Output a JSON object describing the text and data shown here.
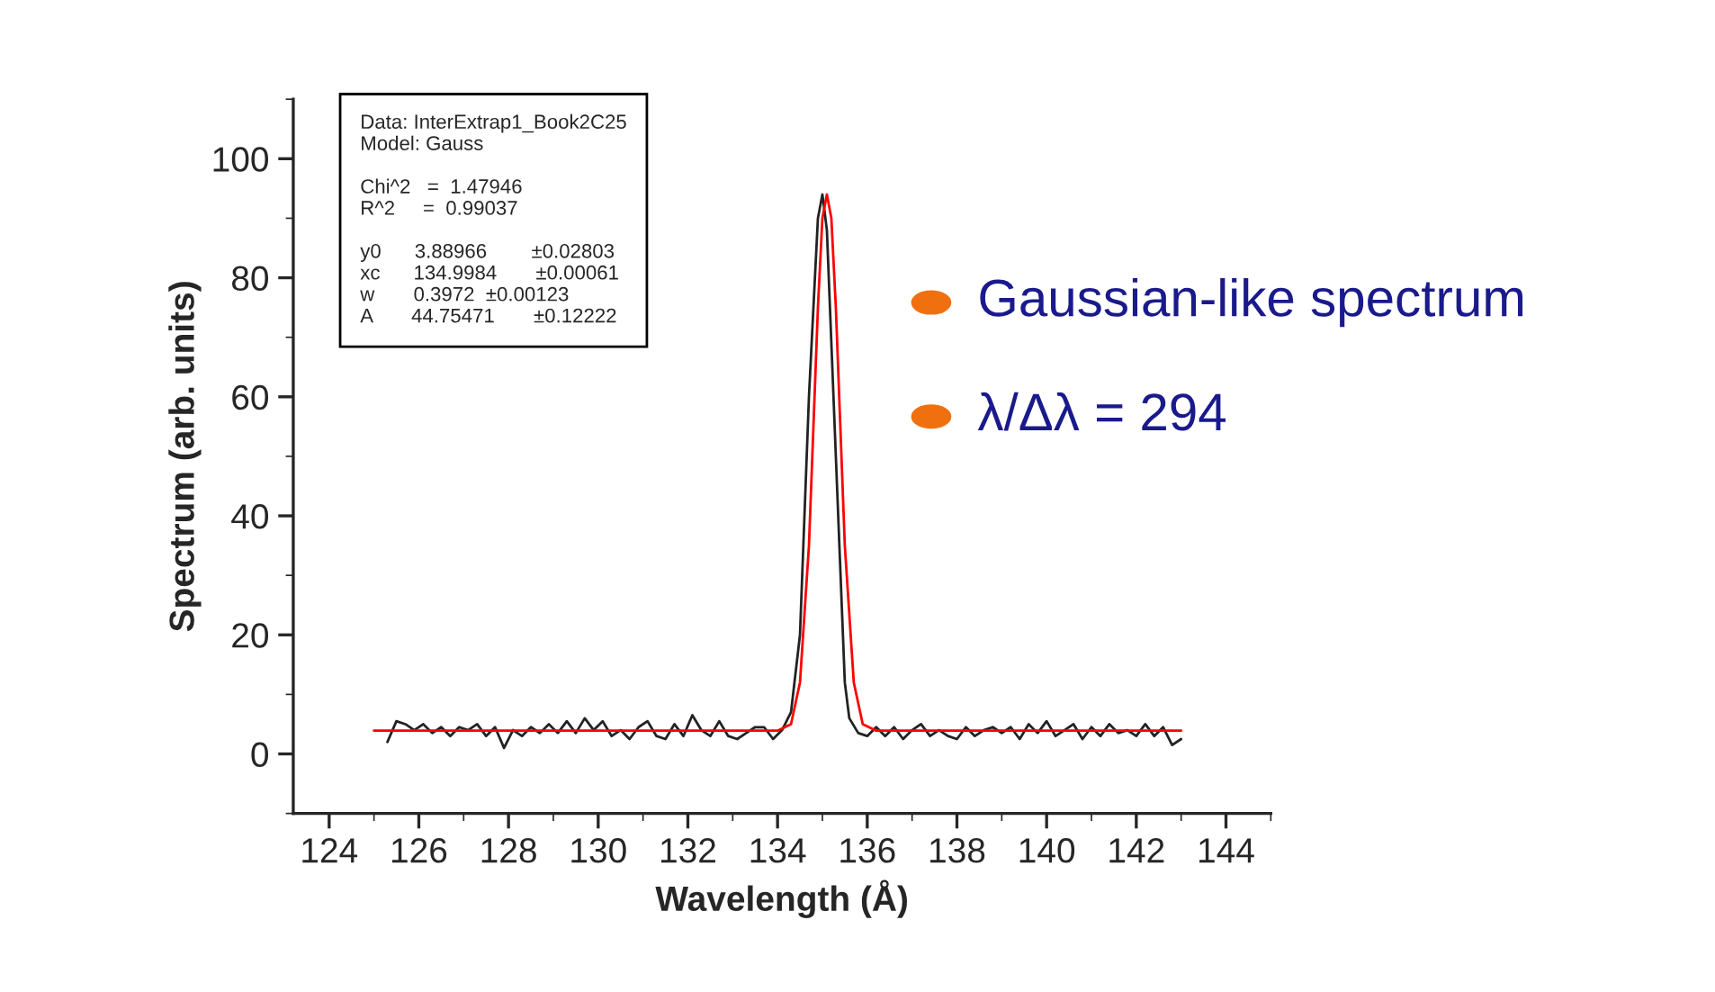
{
  "chart_data": {
    "type": "line",
    "xlabel": "Wavelength (Å)",
    "ylabel": "Spectrum (arb. units)",
    "xlim": [
      123.2,
      145
    ],
    "xticks": [
      124,
      126,
      128,
      130,
      132,
      134,
      136,
      138,
      140,
      142,
      144
    ],
    "ylim": [
      -10,
      110
    ],
    "yticks": [
      0,
      20,
      40,
      60,
      80,
      100
    ],
    "grid": false,
    "legend": false,
    "marker": "none",
    "line_style": "solid",
    "series": [
      {
        "color": "#222222",
        "x": [
          125.3,
          125.5,
          125.7,
          125.9,
          126.1,
          126.3,
          126.5,
          126.7,
          126.9,
          127.1,
          127.3,
          127.5,
          127.7,
          127.9,
          128.1,
          128.3,
          128.5,
          128.7,
          128.9,
          129.1,
          129.3,
          129.5,
          129.7,
          129.9,
          130.1,
          130.3,
          130.5,
          130.7,
          130.9,
          131.1,
          131.3,
          131.5,
          131.7,
          131.9,
          132.1,
          132.3,
          132.5,
          132.7,
          132.9,
          133.1,
          133.3,
          133.5,
          133.7,
          133.9,
          134.1,
          134.3,
          134.5,
          134.7,
          134.9,
          135.0,
          135.1,
          135.3,
          135.5,
          135.6,
          135.8,
          136.0,
          136.2,
          136.4,
          136.6,
          136.8,
          137.0,
          137.2,
          137.4,
          137.6,
          137.8,
          138.0,
          138.2,
          138.4,
          138.6,
          138.8,
          139.0,
          139.2,
          139.4,
          139.6,
          139.8,
          140.0,
          140.2,
          140.4,
          140.6,
          140.8,
          141.0,
          141.2,
          141.4,
          141.6,
          141.8,
          142.0,
          142.2,
          142.4,
          142.6,
          142.8,
          143.0
        ],
        "values": [
          2,
          5.5,
          5,
          4,
          5,
          3.5,
          4.5,
          3,
          4.5,
          4,
          5,
          3,
          4.5,
          1,
          4,
          3,
          4.5,
          3.5,
          5,
          3.5,
          5.5,
          3.5,
          6,
          4,
          5.5,
          3,
          4,
          2.5,
          4.5,
          5.5,
          3,
          2.5,
          5,
          3,
          6.5,
          4,
          3,
          5.5,
          3,
          2.5,
          3.5,
          4.5,
          4.5,
          2.5,
          4,
          7,
          20,
          60,
          90,
          94,
          88,
          50,
          12,
          6,
          3.5,
          3,
          4.5,
          3,
          4.5,
          2.5,
          4,
          5,
          3,
          4,
          3,
          2.5,
          4.5,
          3,
          4,
          4.5,
          3.5,
          4.5,
          2.5,
          5,
          3.5,
          5.5,
          3,
          4,
          5,
          2.5,
          4.5,
          3,
          5,
          3.5,
          4,
          3,
          5,
          3,
          4.5,
          1.5,
          2.5
        ]
      },
      {
        "color": "#ff0000",
        "x": [
          125,
          134.0,
          134.3,
          134.5,
          134.7,
          134.9,
          135.0,
          135.1,
          135.2,
          135.3,
          135.5,
          135.7,
          135.9,
          136.2,
          143
        ],
        "values": [
          3.9,
          3.9,
          5,
          12,
          35,
          75,
          90,
          94,
          90,
          75,
          35,
          12,
          5,
          3.9,
          3.9
        ]
      }
    ],
    "annotations": [
      "Data: InterExtrap1_Book2C25\nModel: Gauss\n\nChi^2   =  1.47946\nR^2     =  0.99037\n\ny0      3.88966        ±0.02803\nxc      134.9984       ±0.00061\nw       0.3972  ±0.00123\nA       44.75471       ±0.12222",
      "Gaussian-like spectrum",
      "λ/Δλ = 294"
    ]
  }
}
